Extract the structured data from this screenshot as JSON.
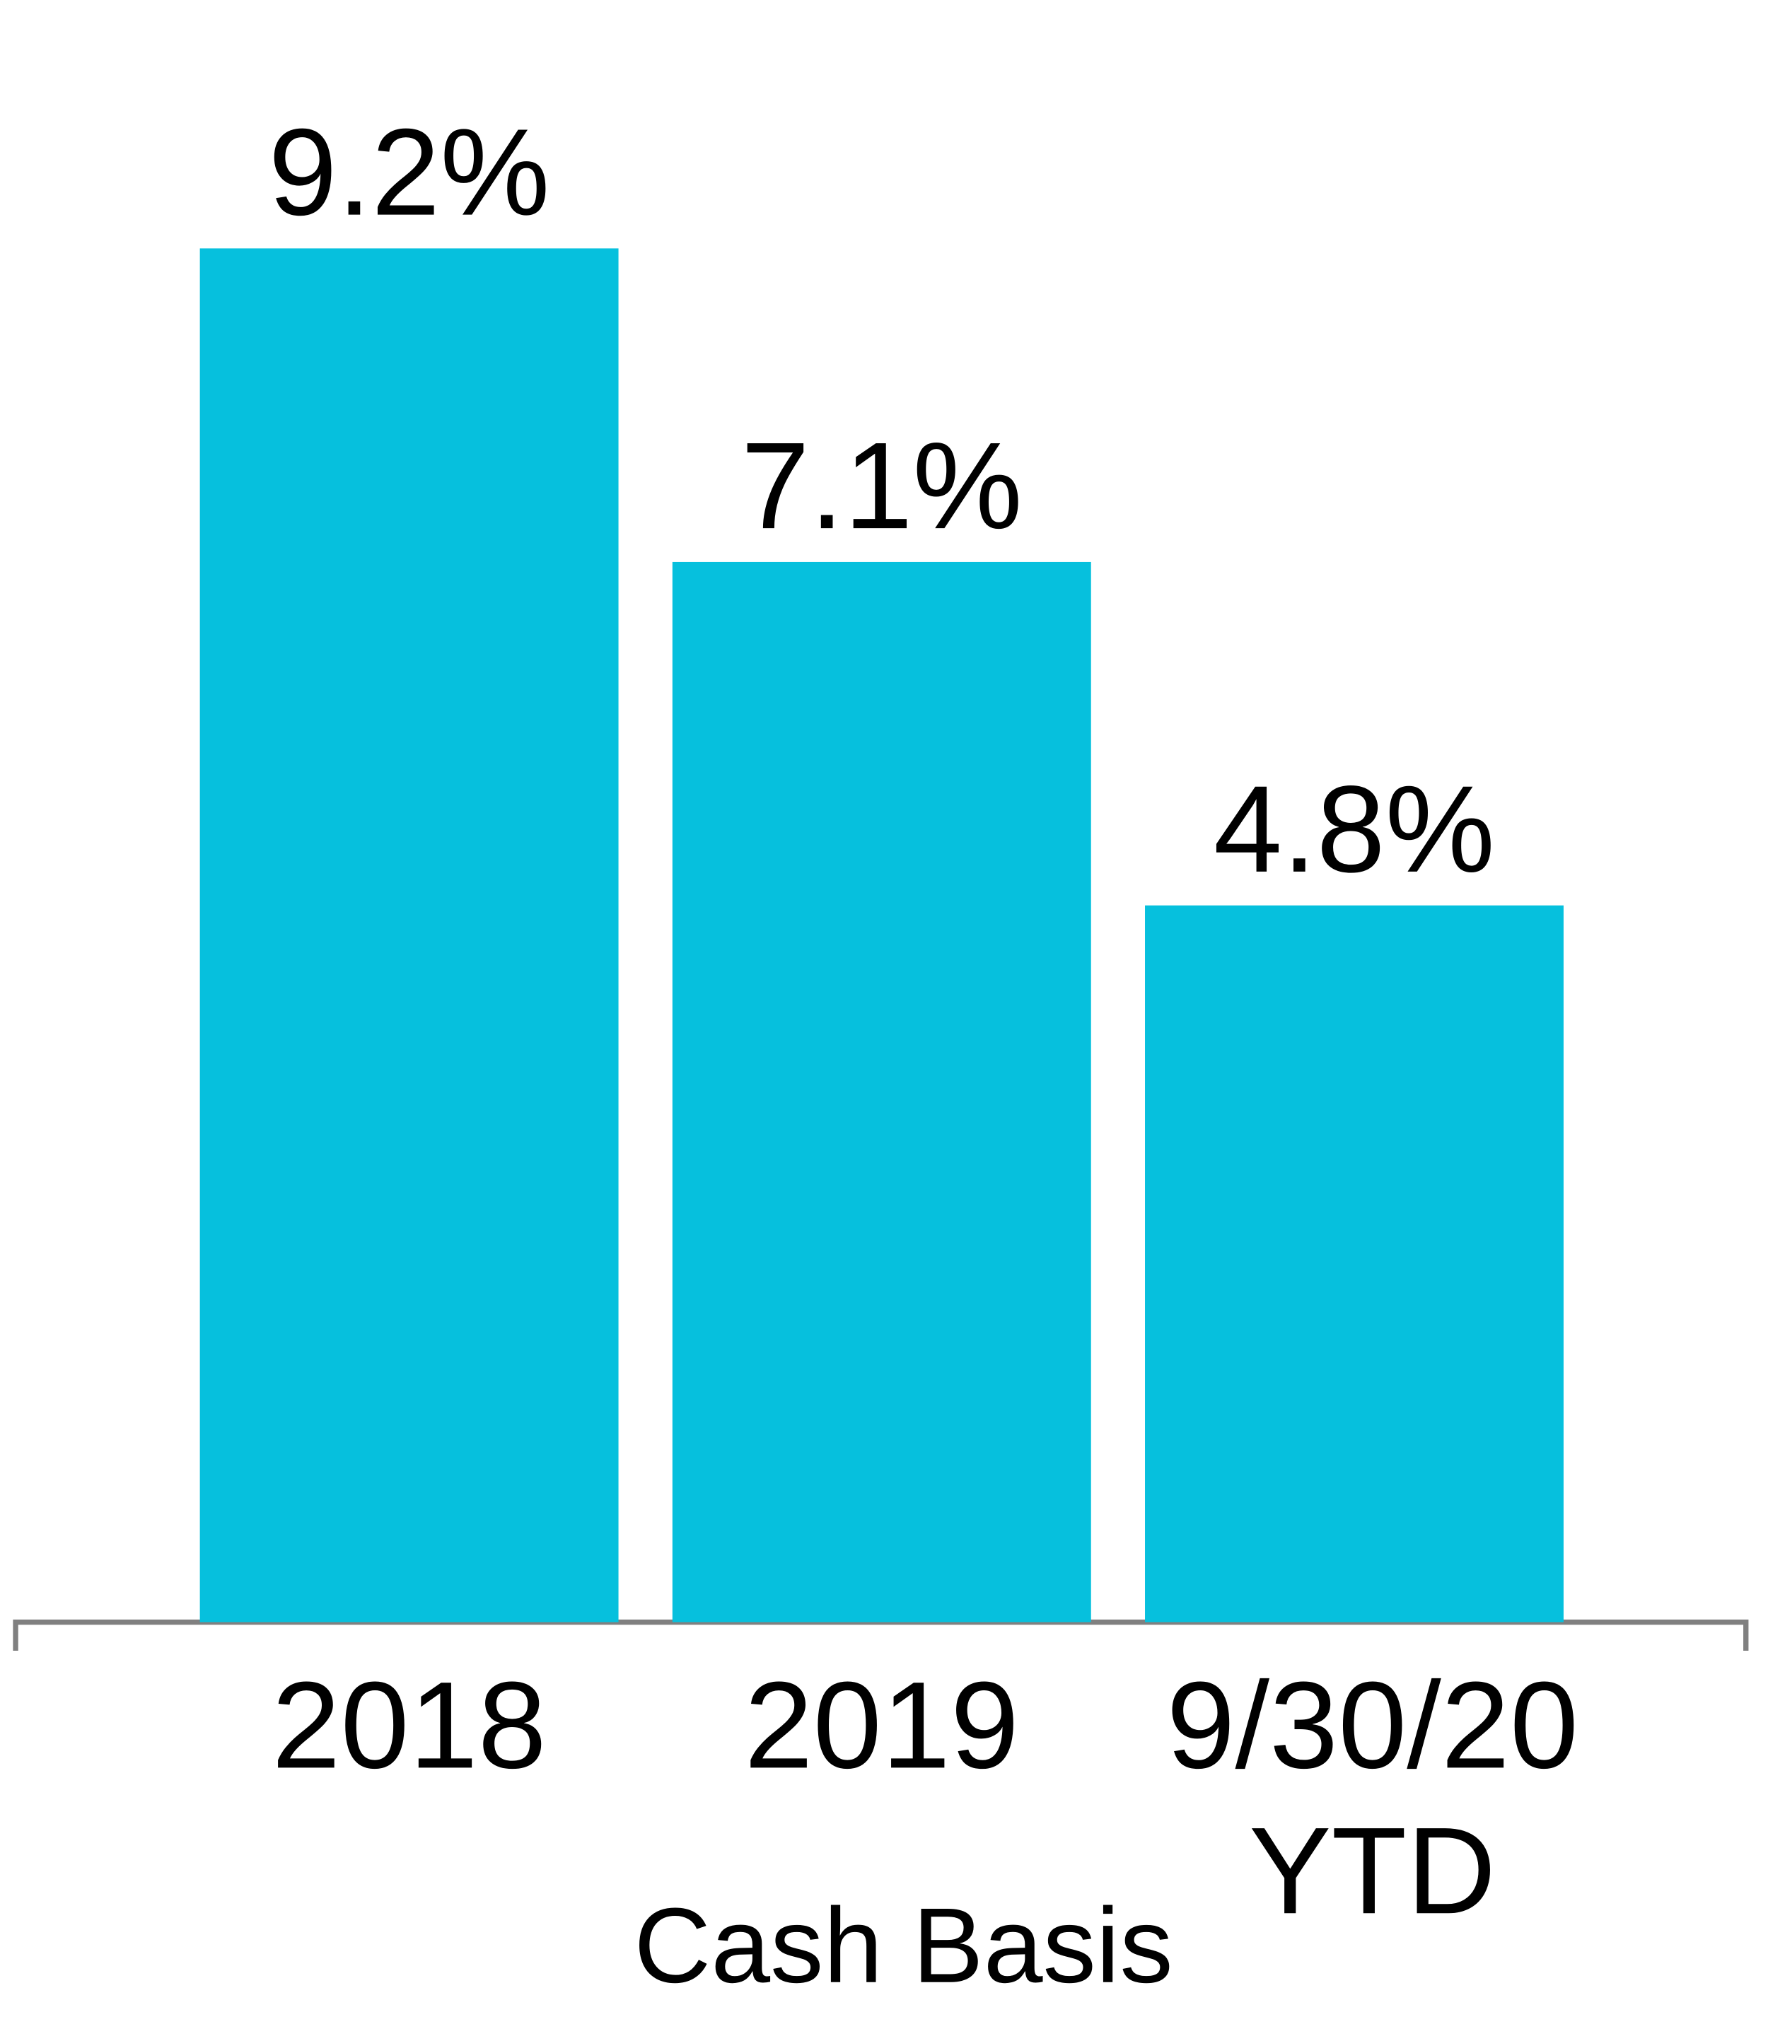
{
  "chart_data": {
    "type": "bar",
    "categories": [
      "2018",
      "2019",
      "9/30/20 YTD"
    ],
    "values": [
      9.2,
      7.1,
      4.8
    ],
    "value_labels": [
      "9.2%",
      "7.1%",
      "4.8%"
    ],
    "color": "#06c0dd",
    "xlabel": "Cash Basis",
    "ylim": [
      0,
      10
    ]
  }
}
